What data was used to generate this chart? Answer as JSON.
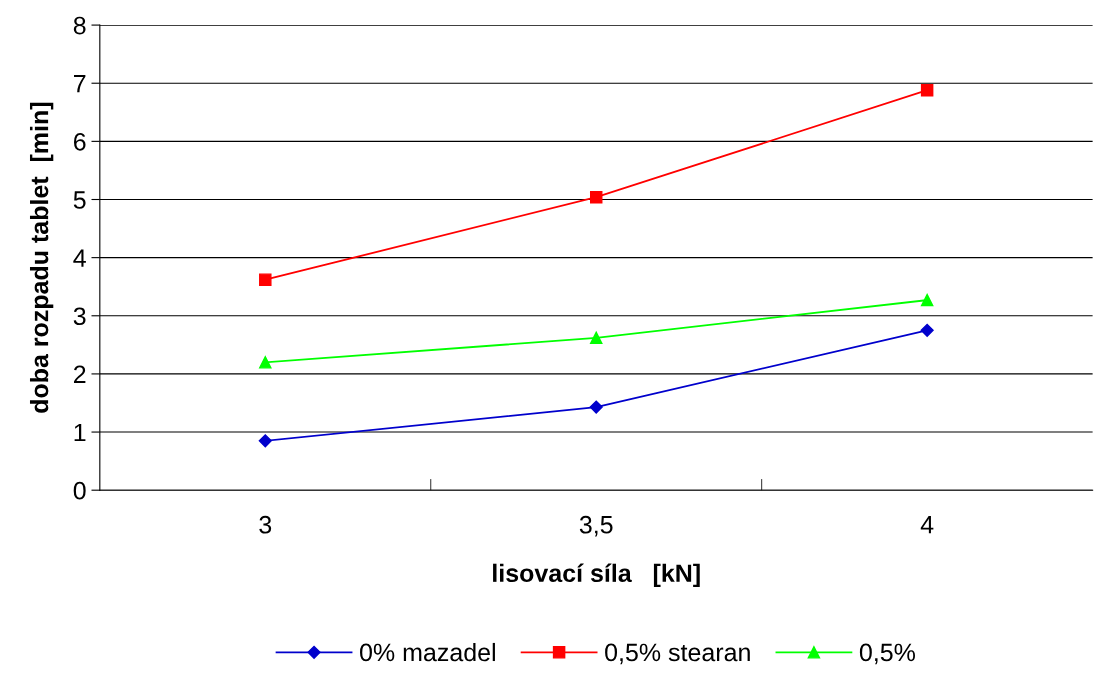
{
  "chart_data": {
    "type": "line",
    "xlabel": "lisovací síla   [kN]",
    "ylabel": "doba rozpadu tablet  [min]",
    "categories": [
      "3",
      "3,5",
      "4"
    ],
    "series": [
      {
        "name": "0% mazadel",
        "color": "#0000cc",
        "marker": "diamond",
        "values": [
          0.85,
          1.43,
          2.75
        ]
      },
      {
        "name": "0,5% stearan",
        "color": "#ff0000",
        "marker": "square",
        "values": [
          3.62,
          5.04,
          6.88
        ]
      },
      {
        "name": "0,5%",
        "color": "#00ff00",
        "marker": "triangle",
        "values": [
          2.2,
          2.62,
          3.27
        ]
      }
    ],
    "ylim": [
      0,
      8
    ],
    "yticks": [
      0,
      1,
      2,
      3,
      4,
      5,
      6,
      7,
      8
    ],
    "grid": "y",
    "legend": "bottom",
    "line_style": "solid"
  }
}
